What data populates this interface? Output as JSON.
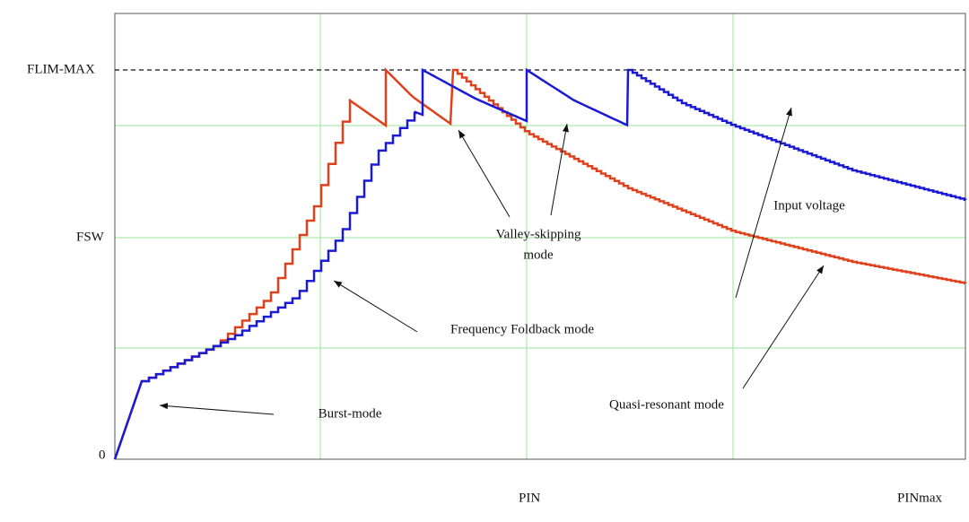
{
  "axis": {
    "y_labels": [
      "FLIM-MAX",
      "FSW",
      "0"
    ],
    "x_labels": [
      "PIN",
      "PINmax"
    ]
  },
  "annotations": {
    "burst": "Burst-mode",
    "foldback": "Frequency Foldback mode",
    "valley": [
      "Valley-skipping",
      "mode"
    ],
    "input": "Input voltage",
    "quasi": "Quasi-resonant mode"
  }
}
